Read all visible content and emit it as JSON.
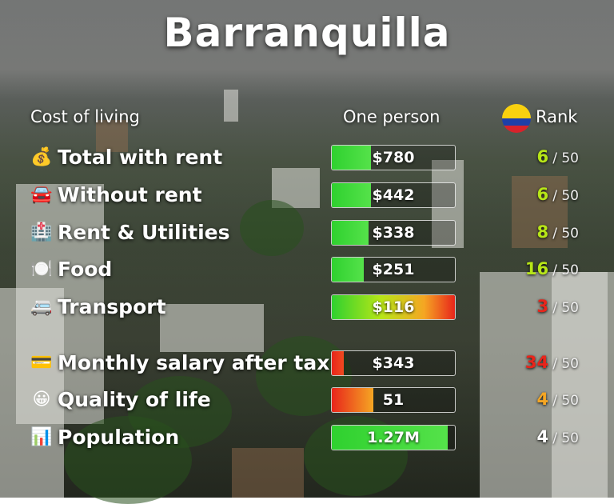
{
  "title": "Barranquilla",
  "headers": {
    "cost_of_living": "Cost of living",
    "one_person": "One person",
    "rank": "Rank"
  },
  "colors": {
    "green": "#2fd12f",
    "yellow_green": "#b7e617",
    "orange": "#f5a623",
    "red": "#e8251b",
    "white": "#ffffff"
  },
  "rows": [
    {
      "icon": "money-bag-icon",
      "glyph": "💰",
      "label": "Total with rent",
      "value": "$780",
      "fill": 0.32,
      "fill_style": "green",
      "rank": "6",
      "rank_total": "/ 50",
      "rank_color": "#b7e617"
    },
    {
      "icon": "car-icon",
      "glyph": "🚘",
      "label": "Without rent",
      "value": "$442",
      "fill": 0.32,
      "fill_style": "green",
      "rank": "6",
      "rank_total": "/ 50",
      "rank_color": "#b7e617"
    },
    {
      "icon": "hospital-building-icon",
      "glyph": "🏥",
      "label": "Rent & Utilities",
      "value": "$338",
      "fill": 0.3,
      "fill_style": "green",
      "rank": "8",
      "rank_total": "/ 50",
      "rank_color": "#b7e617"
    },
    {
      "icon": "plate-cutlery-icon",
      "glyph": "🍽️",
      "label": "Food",
      "value": "$251",
      "fill": 0.26,
      "fill_style": "green",
      "rank": "16",
      "rank_total": "/ 50",
      "rank_color": "#b7e617"
    },
    {
      "icon": "minibus-icon",
      "glyph": "🚐",
      "label": "Transport",
      "value": "$116",
      "fill": 1.0,
      "fill_style": "gradient",
      "rank": "3",
      "rank_total": "/ 50",
      "rank_color": "#e8251b"
    },
    {
      "icon": "credit-card-icon",
      "glyph": "💳",
      "label": "Monthly salary after tax",
      "value": "$343",
      "fill": 0.1,
      "fill_style": "red",
      "rank": "34",
      "rank_total": "/ 50",
      "rank_color": "#e8251b"
    },
    {
      "icon": "smiley-face-icon",
      "glyph": "😀",
      "label": "Quality of life",
      "value": "51",
      "fill": 0.34,
      "fill_style": "redorange",
      "rank": "4",
      "rank_total": "/ 50",
      "rank_color": "#f5a623"
    },
    {
      "icon": "bar-chart-icon",
      "glyph": "📊",
      "label": "Population",
      "value": "1.27M",
      "fill": 0.94,
      "fill_style": "green",
      "rank": "4",
      "rank_total": "/ 50",
      "rank_color": "#ffffff"
    }
  ]
}
